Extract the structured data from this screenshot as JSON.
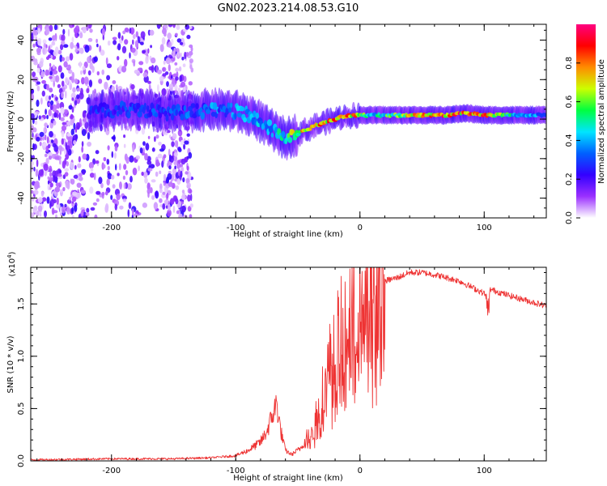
{
  "title": "GN02.2023.214.08.53.G10",
  "chart_data": [
    {
      "type": "heatmap",
      "xlabel": "Height of straight line (km)",
      "ylabel": "Frequency (Hz)",
      "xlim": [
        -265,
        150
      ],
      "ylim": [
        -50,
        48
      ],
      "xticks": [
        -200,
        -100,
        0,
        100
      ],
      "yticks": [
        -40,
        -20,
        0,
        20,
        40
      ],
      "xtick_labels": [
        "-200",
        "-100",
        "0",
        "100"
      ],
      "ytick_labels": [
        "-40",
        "-20",
        "0",
        "20",
        "40"
      ],
      "colorbar": {
        "label": "Normalized spectral amplitude",
        "range": [
          0,
          1
        ],
        "ticks": [
          0.0,
          0.2,
          0.4,
          0.6,
          0.8
        ],
        "tick_labels": [
          "0.0",
          "0.2",
          "0.4",
          "0.6",
          "0.8"
        ],
        "colormap": [
          "#ffffff",
          "#9b30ff",
          "#3300ff",
          "#0060ff",
          "#00e5ff",
          "#00ff40",
          "#ccff00",
          "#ff8c00",
          "#ff0000",
          "#ff0080"
        ]
      },
      "trace": {
        "x": [
          -215,
          -180,
          -150,
          -120,
          -100,
          -85,
          -70,
          -60,
          -52,
          -45,
          -35,
          -25,
          -15,
          -5,
          10,
          30,
          50,
          70,
          85,
          100,
          120,
          150
        ],
        "freq": [
          4,
          5,
          3,
          5,
          4,
          1,
          -6,
          -10,
          -8,
          -6,
          -3,
          -1,
          1,
          2,
          2,
          2,
          2,
          2,
          3,
          2,
          2,
          2
        ],
        "amp": [
          0.3,
          0.32,
          0.35,
          0.4,
          0.42,
          0.45,
          0.48,
          0.55,
          0.78,
          0.8,
          0.85,
          0.88,
          0.9,
          0.88,
          0.5,
          0.7,
          0.9,
          0.9,
          0.92,
          0.9,
          0.6,
          0.35
        ]
      },
      "noise_region": [
        -265,
        -135
      ]
    },
    {
      "type": "line",
      "xlabel": "Height of straight line (km)",
      "ylabel": "SNR (10 * v/v)",
      "scale_label": "(x10",
      "scale_exp": "4",
      "scale_close": ")",
      "xlim": [
        -265,
        150
      ],
      "ylim": [
        0,
        1.85
      ],
      "xticks": [
        -200,
        -100,
        0,
        100
      ],
      "yticks": [
        0.0,
        0.5,
        1.0,
        1.5
      ],
      "xtick_labels": [
        "-200",
        "-100",
        "0",
        "100"
      ],
      "ytick_labels": [
        "0.0",
        "0.5",
        "1.0",
        "1.5"
      ],
      "color": "#ee3333",
      "envelope": {
        "x": [
          -265,
          -200,
          -150,
          -120,
          -100,
          -90,
          -80,
          -75,
          -70,
          -67,
          -64,
          -60,
          -55,
          -48,
          -40,
          -35,
          -30,
          -25,
          -20,
          -15,
          -10,
          -5,
          0,
          5,
          10,
          20,
          30,
          40,
          50,
          60,
          80,
          100,
          103,
          105,
          120,
          150
        ],
        "y": [
          0.01,
          0.02,
          0.02,
          0.03,
          0.05,
          0.1,
          0.18,
          0.28,
          0.45,
          0.55,
          0.3,
          0.1,
          0.06,
          0.12,
          0.28,
          0.45,
          0.65,
          0.9,
          1.1,
          1.22,
          1.35,
          1.45,
          1.55,
          1.62,
          1.68,
          1.72,
          1.75,
          1.8,
          1.8,
          1.78,
          1.72,
          1.6,
          1.55,
          1.64,
          1.58,
          1.48
        ]
      }
    }
  ]
}
